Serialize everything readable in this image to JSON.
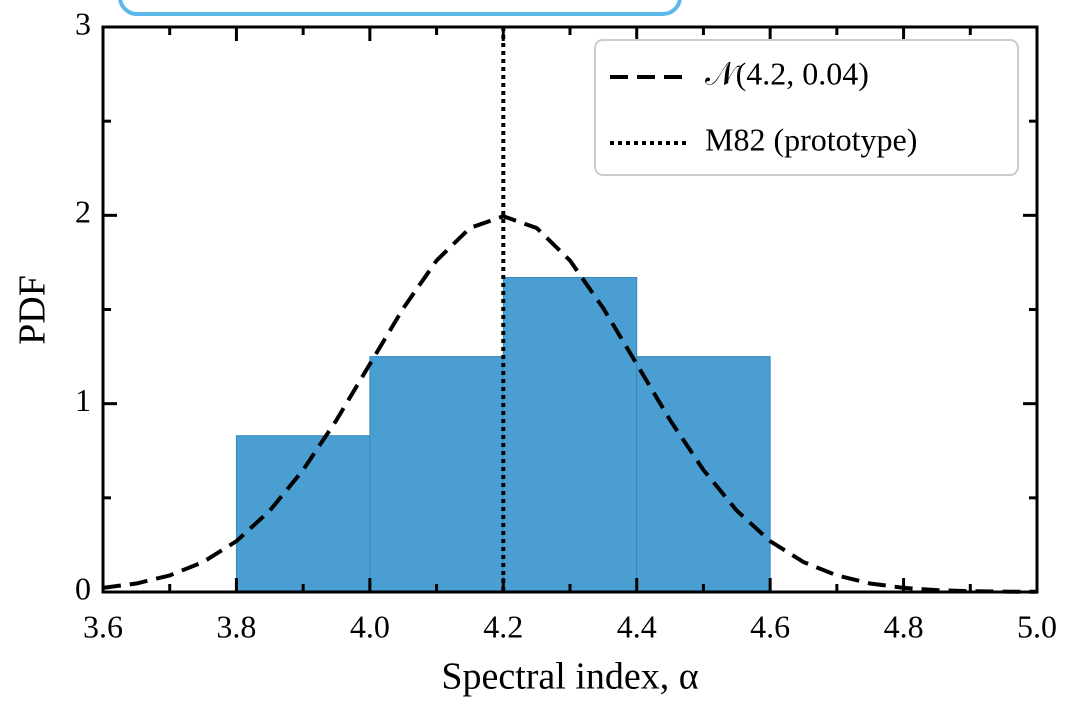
{
  "chart_data": {
    "type": "histogram",
    "xlabel": "Spectral index, α",
    "ylabel": "PDF",
    "bins": [
      3.8,
      4.0,
      4.2,
      4.4,
      4.6
    ],
    "values": [
      0.83,
      1.25,
      1.67,
      1.25
    ],
    "color": "#4a9ed1",
    "curve": {
      "name": "𝒩(4.2, 0.04)",
      "color": "#000000",
      "x": [
        3.6,
        3.65,
        3.7,
        3.75,
        3.8,
        3.85,
        3.9,
        3.95,
        4.0,
        4.05,
        4.1,
        4.15,
        4.2,
        4.25,
        4.3,
        4.35,
        4.4,
        4.45,
        4.5,
        4.55,
        4.6,
        4.65,
        4.7,
        4.75,
        4.8,
        4.85,
        4.9,
        4.95,
        5.0
      ],
      "values": [
        0.022,
        0.045,
        0.088,
        0.159,
        0.27,
        0.432,
        0.648,
        0.913,
        1.21,
        1.506,
        1.76,
        1.933,
        1.995,
        1.933,
        1.76,
        1.506,
        1.21,
        0.913,
        0.648,
        0.432,
        0.27,
        0.159,
        0.088,
        0.045,
        0.022,
        0.01,
        0.004,
        0.002,
        0.001
      ]
    },
    "vline": {
      "name": "M82 (prototype)",
      "x": 4.2,
      "color": "#000000"
    },
    "xlim": [
      3.6,
      5.0
    ],
    "ylim": [
      0,
      3
    ],
    "xticks": [
      3.6,
      3.8,
      {
        "value": 4,
        "label": "4.0"
      },
      4.2,
      4.4,
      4.6,
      4.8,
      {
        "value": 5,
        "label": "5.0"
      }
    ],
    "yticks": [
      0,
      1,
      2,
      3
    ],
    "xminorticks": [
      3.7,
      3.9,
      4.1,
      4.3,
      4.5,
      4.7,
      4.9
    ],
    "yminorticks": [
      0.5,
      1.5,
      2.5
    ],
    "legend": "upper right"
  }
}
